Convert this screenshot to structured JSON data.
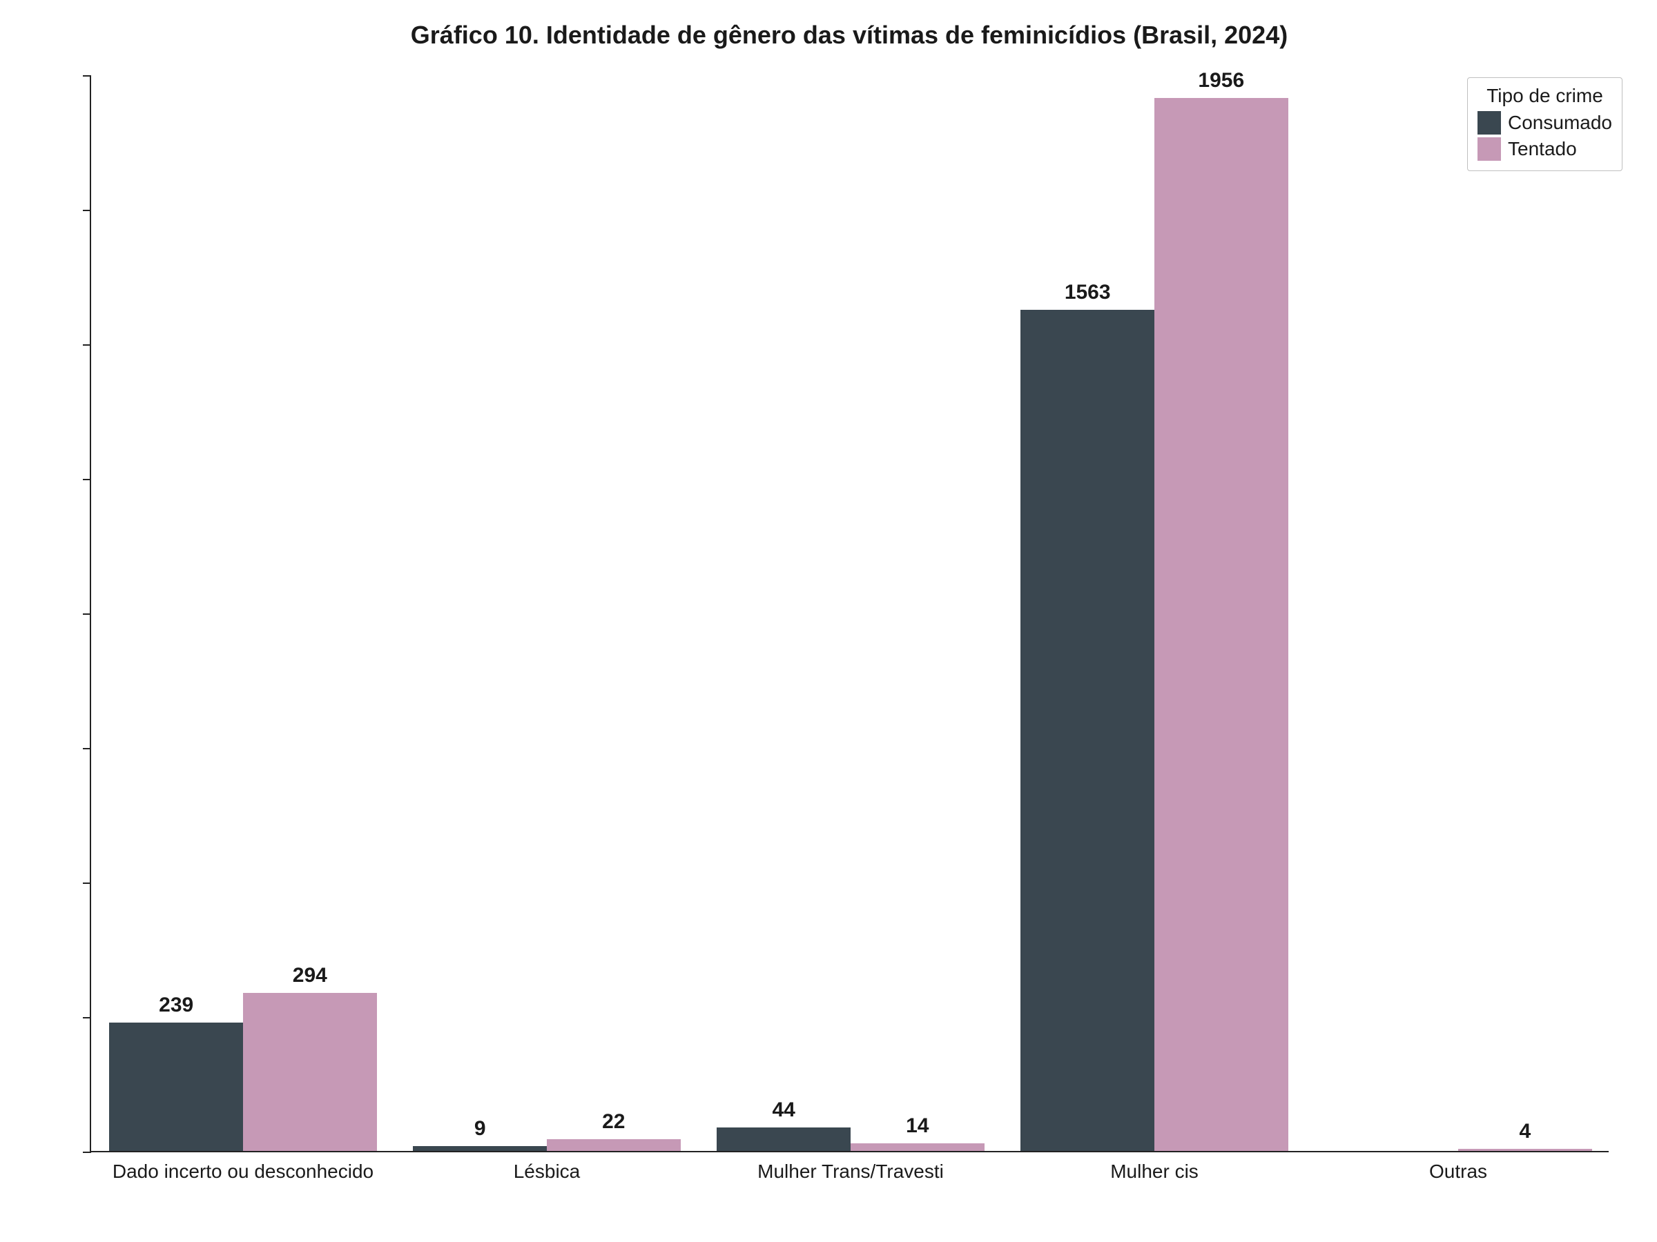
{
  "chart": {
    "type": "bar",
    "title": "Gráfico 10. Identidade de gênero das vítimas de feminicídios (Brasil, 2024)",
    "title_fontsize": 36,
    "title_fontweight": "bold",
    "title_color": "#1a1a1a",
    "background_color": "#ffffff",
    "axis_color": "#222222",
    "label_color": "#1a1a1a",
    "x_label_fontsize": 28,
    "value_label_fontsize": 30,
    "value_label_fontweight": "bold",
    "ylim": [
      0,
      2000
    ],
    "ytick_step": 250,
    "yticks": [
      0,
      250,
      500,
      750,
      1000,
      1250,
      1500,
      1750,
      2000
    ],
    "categories": [
      "Dado incerto ou desconhecido",
      "Lésbica",
      "Mulher Trans/Travesti",
      "Mulher cis",
      "Outras"
    ],
    "series": [
      {
        "name": "Consumado",
        "color": "#3a4750",
        "values": [
          239,
          9,
          44,
          1563,
          null
        ]
      },
      {
        "name": "Tentado",
        "color": "#c699b6",
        "values": [
          294,
          22,
          14,
          1956,
          4
        ]
      }
    ],
    "bar_width": 0.44,
    "legend": {
      "title": "Tipo de crime",
      "title_fontsize": 28,
      "label_fontsize": 28,
      "border_color": "#bfbfbf",
      "background": "#ffffff",
      "position": "top-right"
    }
  }
}
